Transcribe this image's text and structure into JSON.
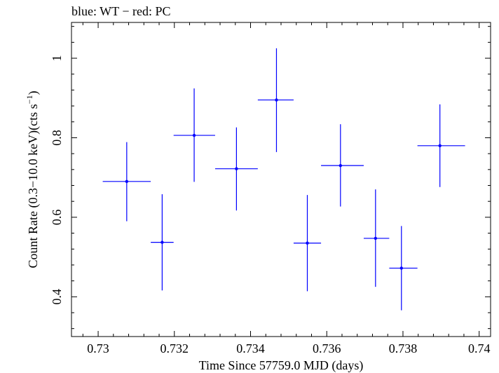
{
  "chart_data": {
    "type": "scatter",
    "title": "blue: WT − red: PC",
    "xlabel": "Time Since 57759.0 MJD (days)",
    "ylabel": {
      "main": "Count Rate (0.3−10.0 keV)(cts s",
      "sup": "−1",
      "close": ")"
    },
    "xlim": [
      0.7293,
      0.7403
    ],
    "ylim": [
      0.3,
      1.09
    ],
    "xticks": [
      0.73,
      0.732,
      0.734,
      0.736,
      0.738,
      0.74
    ],
    "xtick_labels": [
      "0.73",
      "0.732",
      "0.734",
      "0.736",
      "0.738",
      "0.74"
    ],
    "yticks": [
      0.4,
      0.6,
      0.8,
      1.0
    ],
    "ytick_labels": [
      "0.4",
      "0.6",
      "0.8",
      "1"
    ],
    "grid": false,
    "series": [
      {
        "color": "#0000ff",
        "mode": "WT",
        "points": [
          {
            "x": 0.73075,
            "xlo": 0.73012,
            "xhi": 0.73138,
            "y": 0.69,
            "ylo": 0.59,
            "yhi": 0.789
          },
          {
            "x": 0.73168,
            "xlo": 0.73138,
            "xhi": 0.73198,
            "y": 0.537,
            "ylo": 0.416,
            "yhi": 0.658
          },
          {
            "x": 0.73252,
            "xlo": 0.73198,
            "xhi": 0.73307,
            "y": 0.806,
            "ylo": 0.689,
            "yhi": 0.924
          },
          {
            "x": 0.73363,
            "xlo": 0.73307,
            "xhi": 0.73419,
            "y": 0.722,
            "ylo": 0.617,
            "yhi": 0.826
          },
          {
            "x": 0.73468,
            "xlo": 0.73419,
            "xhi": 0.73513,
            "y": 0.895,
            "ylo": 0.764,
            "yhi": 1.025
          },
          {
            "x": 0.73549,
            "xlo": 0.73513,
            "xhi": 0.73585,
            "y": 0.535,
            "ylo": 0.414,
            "yhi": 0.656
          },
          {
            "x": 0.73636,
            "xlo": 0.73585,
            "xhi": 0.73697,
            "y": 0.73,
            "ylo": 0.627,
            "yhi": 0.834
          },
          {
            "x": 0.73728,
            "xlo": 0.73697,
            "xhi": 0.73764,
            "y": 0.547,
            "ylo": 0.425,
            "yhi": 0.67
          },
          {
            "x": 0.73796,
            "xlo": 0.73764,
            "xhi": 0.73838,
            "y": 0.472,
            "ylo": 0.366,
            "yhi": 0.578
          },
          {
            "x": 0.73897,
            "xlo": 0.73838,
            "xhi": 0.73963,
            "y": 0.78,
            "ylo": 0.676,
            "yhi": 0.884
          }
        ]
      }
    ]
  }
}
